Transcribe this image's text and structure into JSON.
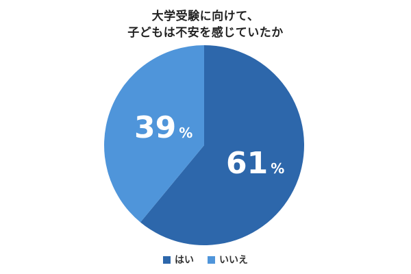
{
  "chart_data": {
    "type": "pie",
    "title": "大学受験に向けて、子どもは不安を感じていたか",
    "title_lines": [
      "大学受験に向けて、",
      "子どもは不安を感じていたか"
    ],
    "categories": [
      "はい",
      "いいえ"
    ],
    "values": [
      61,
      39
    ],
    "labels": [
      "61",
      "39"
    ],
    "unit": "%",
    "colors": [
      "#2d67ab",
      "#4f95da"
    ],
    "start_angle": "12 o'clock",
    "direction": "clockwise (はい first)",
    "legend_position": "bottom"
  }
}
